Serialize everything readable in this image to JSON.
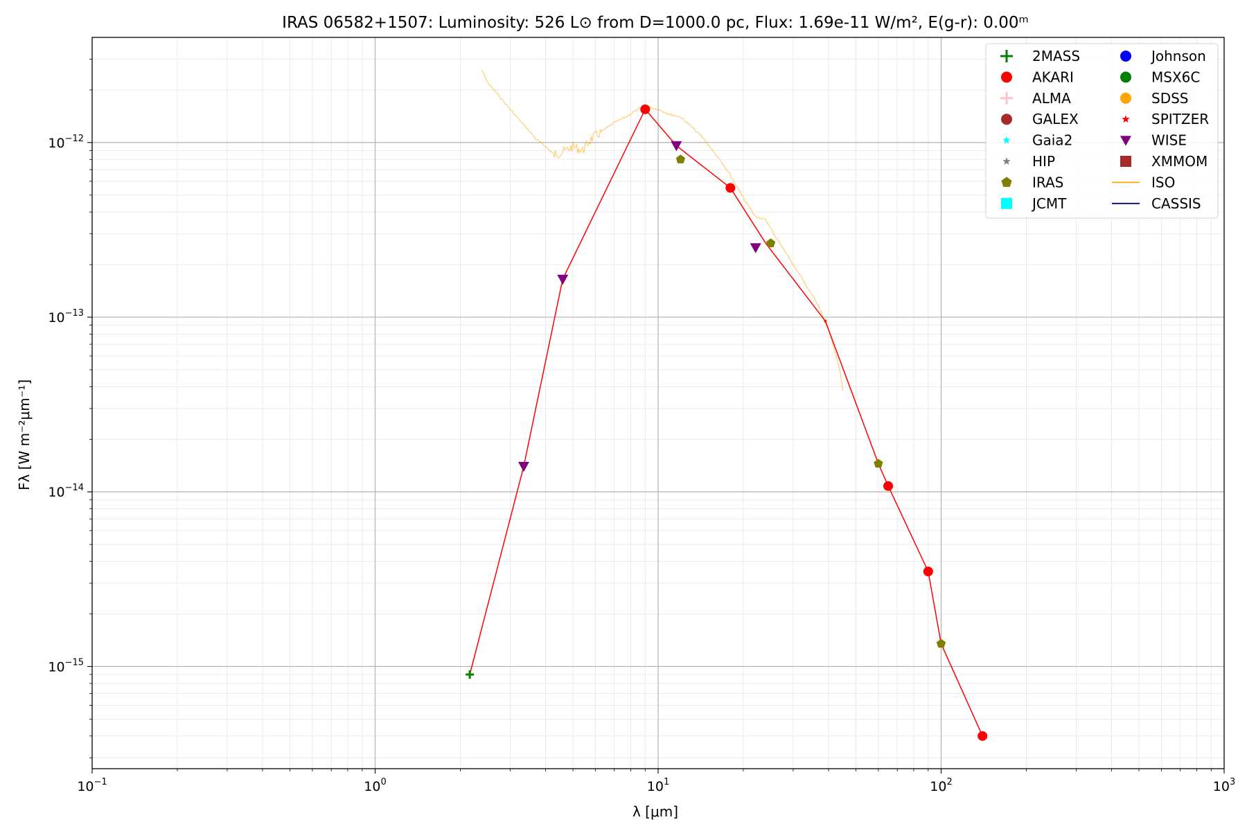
{
  "chart_data": {
    "type": "scatter",
    "title": "IRAS 06582+1507:  Luminosity: 526 L⊙ from D=1000.0 pc, Flux: 1.69e-11 W/m², E(g-r): 0.00ᵐ",
    "xlabel": "λ [μm]",
    "ylabel": "Fλ [W m⁻²μm⁻¹]",
    "x_scale": "log",
    "y_scale": "log",
    "xlim": [
      0.1,
      1000
    ],
    "ylim": [
      2.6e-16,
      4e-12
    ],
    "x_ticks": [
      {
        "label_base": "10",
        "label_exp": "−1",
        "value": 0.1
      },
      {
        "label_base": "10",
        "label_exp": "0",
        "value": 1
      },
      {
        "label_base": "10",
        "label_exp": "1",
        "value": 10
      },
      {
        "label_base": "10",
        "label_exp": "2",
        "value": 100
      },
      {
        "label_base": "10",
        "label_exp": "3",
        "value": 1000
      }
    ],
    "y_ticks": [
      {
        "label_base": "10",
        "label_exp": "−15",
        "value": 1e-15
      },
      {
        "label_base": "10",
        "label_exp": "−14",
        "value": 1e-14
      },
      {
        "label_base": "10",
        "label_exp": "−13",
        "value": 1e-13
      },
      {
        "label_base": "10",
        "label_exp": "−12",
        "value": 1e-12
      }
    ],
    "grid": true,
    "legend_position": "top-right",
    "sed_line": {
      "color": "#ff0000",
      "points": [
        [
          2.16,
          9e-16
        ],
        [
          3.35,
          1.4e-14
        ],
        [
          4.6,
          1.65e-13
        ],
        [
          9.0,
          1.55e-12
        ],
        [
          11.6,
          9.6e-13
        ],
        [
          18.0,
          5.5e-13
        ],
        [
          24.0,
          2.65e-13
        ],
        [
          39.0,
          9.5e-14
        ],
        [
          60.0,
          1.45e-14
        ],
        [
          65.0,
          1.08e-14
        ],
        [
          90.0,
          3.5e-15
        ],
        [
          100.0,
          1.35e-15
        ],
        [
          140.0,
          4e-16
        ]
      ]
    },
    "iso_spectrum": {
      "color": "#ffa500",
      "points": [
        [
          2.38,
          2.6e-12
        ],
        [
          2.5,
          2.2e-12
        ],
        [
          2.7,
          1.9e-12
        ],
        [
          3.0,
          1.55e-12
        ],
        [
          3.3,
          1.3e-12
        ],
        [
          3.7,
          1.05e-12
        ],
        [
          4.0,
          9.5e-13
        ],
        [
          4.3,
          8.5e-13
        ],
        [
          4.6,
          8.8e-13
        ],
        [
          5.0,
          9.5e-13
        ],
        [
          5.4,
          9e-13
        ],
        [
          5.8,
          1.05e-12
        ],
        [
          6.3,
          1.15e-12
        ],
        [
          7.0,
          1.3e-12
        ],
        [
          7.7,
          1.4e-12
        ],
        [
          8.5,
          1.55e-12
        ],
        [
          9.2,
          1.6e-12
        ],
        [
          10.0,
          1.55e-12
        ],
        [
          11.0,
          1.45e-12
        ],
        [
          12.0,
          1.4e-12
        ],
        [
          13.0,
          1.25e-12
        ],
        [
          14.5,
          1.05e-12
        ],
        [
          16.0,
          8.5e-13
        ],
        [
          18.0,
          6.5e-13
        ],
        [
          20.0,
          4.8e-13
        ],
        [
          22.0,
          3.8e-13
        ],
        [
          24.0,
          3.6e-13
        ],
        [
          26.0,
          2.9e-13
        ],
        [
          28.0,
          2.4e-13
        ],
        [
          32.0,
          1.7e-13
        ],
        [
          36.0,
          1.25e-13
        ],
        [
          40.0,
          8.5e-14
        ],
        [
          42.0,
          6.5e-14
        ],
        [
          44.0,
          4.8e-14
        ],
        [
          45.0,
          3.8e-14
        ]
      ]
    },
    "series": [
      {
        "name": "2MASS",
        "marker": "plus",
        "color": "#008000",
        "points": [
          [
            2.16,
            9e-16
          ]
        ]
      },
      {
        "name": "AKARI",
        "marker": "circle",
        "color": "#ff0000",
        "points": [
          [
            9.0,
            1.55e-12
          ],
          [
            18.0,
            5.5e-13
          ],
          [
            65.0,
            1.08e-14
          ],
          [
            90.0,
            3.5e-15
          ],
          [
            140.0,
            4e-16
          ]
        ]
      },
      {
        "name": "ALMA",
        "marker": "plus",
        "color": "#ffc0cb",
        "points": []
      },
      {
        "name": "GALEX",
        "marker": "circle",
        "color": "#a52a2a",
        "points": []
      },
      {
        "name": "Gaia2",
        "marker": "star",
        "color": "#00ffff",
        "points": []
      },
      {
        "name": "HIP",
        "marker": "star",
        "color": "#808080",
        "points": []
      },
      {
        "name": "IRAS",
        "marker": "pentagon",
        "color": "#808000",
        "points": [
          [
            12.0,
            8e-13
          ],
          [
            25.0,
            2.65e-13
          ],
          [
            60.0,
            1.45e-14
          ],
          [
            100.0,
            1.35e-15
          ]
        ]
      },
      {
        "name": "JCMT",
        "marker": "square",
        "color": "#00ffff",
        "points": []
      },
      {
        "name": "Johnson",
        "marker": "circle",
        "color": "#0000ff",
        "points": []
      },
      {
        "name": "MSX6C",
        "marker": "circle",
        "color": "#008000",
        "points": []
      },
      {
        "name": "SDSS",
        "marker": "circle",
        "color": "#ffa500",
        "points": []
      },
      {
        "name": "SPITZER",
        "marker": "star",
        "color": "#ff0000",
        "points": [
          [
            39.0,
            9.5e-14
          ]
        ]
      },
      {
        "name": "WISE",
        "marker": "triangle-down",
        "color": "#800080",
        "points": [
          [
            3.35,
            1.4e-14
          ],
          [
            4.6,
            1.65e-13
          ],
          [
            11.6,
            9.6e-13
          ],
          [
            22.1,
            2.5e-13
          ]
        ]
      },
      {
        "name": "XMMOM",
        "marker": "square",
        "color": "#a52a2a",
        "points": []
      },
      {
        "name": "ISO",
        "marker": "line",
        "color": "#ffa500",
        "points": []
      },
      {
        "name": "CASSIS",
        "marker": "line",
        "color": "#00008b",
        "points": []
      }
    ]
  }
}
